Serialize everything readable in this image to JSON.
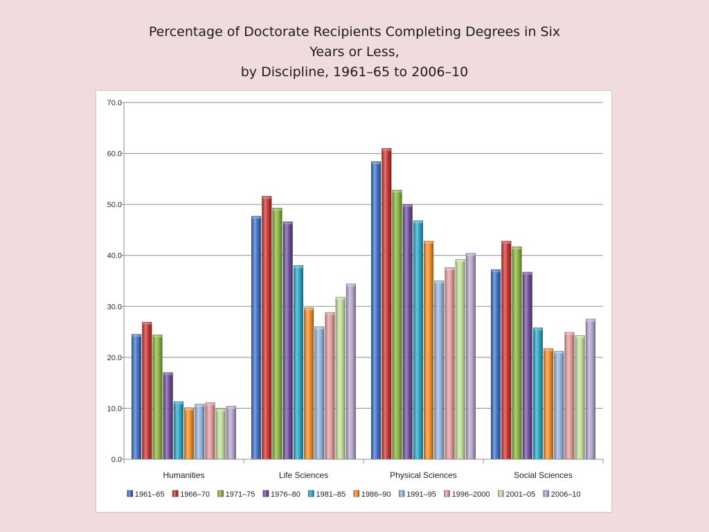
{
  "title_lines": [
    "Percentage of Doctorate Recipients Completing Degrees in Six",
    "Years or Less,",
    "by Discipline, 1961–65 to 2006–10"
  ],
  "chart_data": {
    "type": "bar",
    "title": "Percentage of Doctorate Recipients Completing Degrees in Six Years or Less, by Discipline, 1961–65 to 2006–10",
    "xlabel": "",
    "ylabel": "",
    "ylim": [
      0,
      70
    ],
    "yticks": [
      "0.0",
      "10.0",
      "20.0",
      "30.0",
      "40.0",
      "50.0",
      "60.0",
      "70.0"
    ],
    "grid": true,
    "legend_position": "bottom",
    "categories": [
      "Humanities",
      "Life Sciences",
      "Physical Sciences",
      "Social Sciences"
    ],
    "series": [
      {
        "name": "1961–65",
        "color": "#3b6fc4",
        "values": [
          24.5,
          47.7,
          58.4,
          37.2
        ]
      },
      {
        "name": "1966–70",
        "color": "#c8322f",
        "values": [
          26.9,
          51.6,
          61.0,
          42.8
        ]
      },
      {
        "name": "1971–75",
        "color": "#86b33a",
        "values": [
          24.4,
          49.3,
          52.8,
          41.7
        ]
      },
      {
        "name": "1976–80",
        "color": "#6c4b9a",
        "values": [
          17.0,
          46.6,
          50.0,
          36.7
        ]
      },
      {
        "name": "1981–85",
        "color": "#27a4c4",
        "values": [
          11.3,
          38.0,
          46.8,
          25.8
        ]
      },
      {
        "name": "1986–90",
        "color": "#f08a24",
        "values": [
          10.1,
          29.7,
          42.8,
          21.7
        ]
      },
      {
        "name": "1991–95",
        "color": "#95b2dc",
        "values": [
          10.8,
          26.0,
          35.0,
          21.2
        ]
      },
      {
        "name": "1996–2000",
        "color": "#e29a99",
        "values": [
          11.1,
          28.8,
          37.6,
          24.9
        ]
      },
      {
        "name": "2001–05",
        "color": "#c2dd9a",
        "values": [
          9.9,
          31.8,
          39.2,
          24.3
        ]
      },
      {
        "name": "2006–10",
        "color": "#b3a4cc",
        "values": [
          10.4,
          34.4,
          40.4,
          27.5
        ]
      }
    ]
  }
}
